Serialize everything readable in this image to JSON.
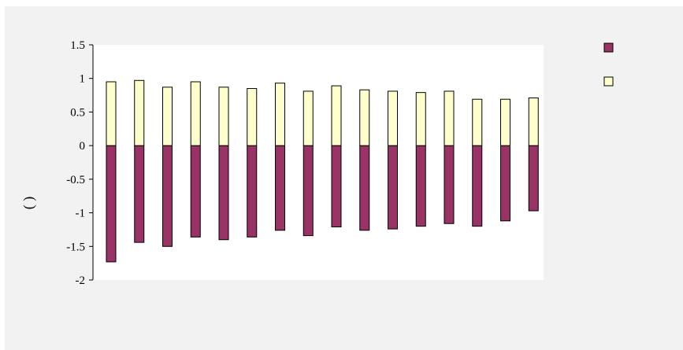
{
  "chart_data": {
    "type": "bar",
    "stacked": true,
    "title": "",
    "xlabel": "",
    "ylabel": "(      )",
    "ylim": [
      -2,
      1.5
    ],
    "yticks": [
      1.5,
      1,
      0.5,
      0,
      -0.5,
      -1,
      -1.5,
      -2
    ],
    "ytick_labels": [
      "1.5",
      "1",
      "0.5",
      "0",
      "-0.5",
      "-1",
      "-1.5",
      "-2"
    ],
    "grid": false,
    "legend_position": "top-right",
    "categories": [
      "",
      "",
      "",
      "",
      "",
      "",
      "",
      "",
      "",
      "",
      "",
      "",
      "",
      "",
      "",
      ""
    ],
    "series": [
      {
        "color": "#993366",
        "values": [
          -1.73,
          -1.44,
          -1.5,
          -1.36,
          -1.4,
          -1.36,
          -1.26,
          -1.34,
          -1.21,
          -1.26,
          -1.24,
          -1.2,
          -1.16,
          -1.2,
          -1.12,
          -0.97
        ]
      },
      {
        "color": "#ffffcc",
        "values": [
          0.95,
          0.97,
          0.87,
          0.95,
          0.87,
          0.85,
          0.93,
          0.81,
          0.89,
          0.83,
          0.81,
          0.79,
          0.81,
          0.69,
          0.69,
          0.71
        ]
      }
    ]
  },
  "colors": {
    "frame_background": "#f2f2f2",
    "plot_background": "#ffffff",
    "outline": "#000000"
  }
}
